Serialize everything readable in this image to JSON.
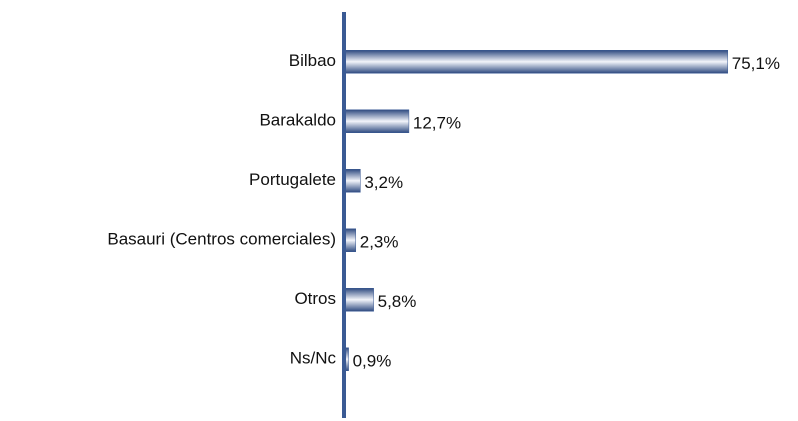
{
  "chart_data": {
    "type": "bar",
    "orientation": "horizontal",
    "categories": [
      "Bilbao",
      "Barakaldo",
      "Portugalete",
      "Basauri (Centros comerciales)",
      "Otros",
      "Ns/Nc"
    ],
    "values": [
      75.1,
      12.7,
      3.2,
      2.3,
      5.8,
      0.9
    ],
    "value_labels": [
      "75,1%",
      "12,7%",
      "3,2%",
      "2,3%",
      "5,8%",
      "0,9%"
    ],
    "color": "#3a5a94"
  }
}
